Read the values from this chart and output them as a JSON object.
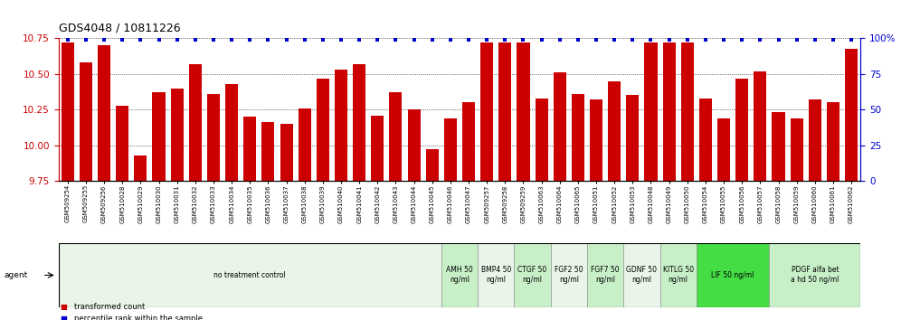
{
  "title": "GDS4048 / 10811226",
  "samples": [
    "GSM509254",
    "GSM509255",
    "GSM509256",
    "GSM510028",
    "GSM510029",
    "GSM510030",
    "GSM510031",
    "GSM510032",
    "GSM510033",
    "GSM510034",
    "GSM510035",
    "GSM510036",
    "GSM510037",
    "GSM510038",
    "GSM510039",
    "GSM510040",
    "GSM510041",
    "GSM510042",
    "GSM510043",
    "GSM510044",
    "GSM510045",
    "GSM510046",
    "GSM510047",
    "GSM509257",
    "GSM509258",
    "GSM509259",
    "GSM510063",
    "GSM510064",
    "GSM510065",
    "GSM510051",
    "GSM510052",
    "GSM510053",
    "GSM510048",
    "GSM510049",
    "GSM510050",
    "GSM510054",
    "GSM510055",
    "GSM510056",
    "GSM510057",
    "GSM510058",
    "GSM510059",
    "GSM510060",
    "GSM510061",
    "GSM510062"
  ],
  "bar_values": [
    10.72,
    10.58,
    10.7,
    10.28,
    9.93,
    10.37,
    10.4,
    10.57,
    10.36,
    10.43,
    10.2,
    10.16,
    10.15,
    10.26,
    10.47,
    10.53,
    10.57,
    10.21,
    10.37,
    10.25,
    9.97,
    10.19,
    10.3,
    10.72,
    10.72,
    10.72,
    10.33,
    10.51,
    10.36,
    10.32,
    10.45,
    10.35,
    10.72,
    10.72,
    10.72,
    10.33,
    10.19,
    10.47,
    10.52,
    10.23,
    10.19,
    10.32,
    10.3,
    10.68
  ],
  "percentile_values": [
    99,
    99,
    99,
    99,
    99,
    99,
    99,
    99,
    99,
    99,
    99,
    99,
    99,
    99,
    99,
    99,
    99,
    99,
    99,
    99,
    99,
    99,
    99,
    99,
    99,
    99,
    99,
    99,
    99,
    99,
    99,
    99,
    99,
    99,
    99,
    99,
    99,
    99,
    99,
    99,
    99,
    99,
    99,
    99
  ],
  "ylim_left": [
    9.75,
    10.75
  ],
  "ylim_right": [
    0,
    100
  ],
  "yticks_left": [
    9.75,
    10.0,
    10.25,
    10.5,
    10.75
  ],
  "yticks_right": [
    0,
    25,
    50,
    75,
    100
  ],
  "bar_color": "#cc0000",
  "dot_color": "#0000cc",
  "bg_color": "#ffffff",
  "plot_bg": "#ffffff",
  "groups": [
    {
      "label": "no treatment control",
      "start": 0,
      "end": 21,
      "color": "#e8f5e8"
    },
    {
      "label": "AMH 50\nng/ml",
      "start": 21,
      "end": 23,
      "color": "#c8f0c8"
    },
    {
      "label": "BMP4 50\nng/ml",
      "start": 23,
      "end": 25,
      "color": "#e8f5e8"
    },
    {
      "label": "CTGF 50\nng/ml",
      "start": 25,
      "end": 27,
      "color": "#c8f0c8"
    },
    {
      "label": "FGF2 50\nng/ml",
      "start": 27,
      "end": 29,
      "color": "#e8f5e8"
    },
    {
      "label": "FGF7 50\nng/ml",
      "start": 29,
      "end": 31,
      "color": "#c8f0c8"
    },
    {
      "label": "GDNF 50\nng/ml",
      "start": 31,
      "end": 33,
      "color": "#e8f5e8"
    },
    {
      "label": "KITLG 50\nng/ml",
      "start": 33,
      "end": 35,
      "color": "#c8f0c8"
    },
    {
      "label": "LIF 50 ng/ml",
      "start": 35,
      "end": 39,
      "color": "#44dd44"
    },
    {
      "label": "PDGF alfa bet\na hd 50 ng/ml",
      "start": 39,
      "end": 44,
      "color": "#c8f0c8"
    }
  ]
}
